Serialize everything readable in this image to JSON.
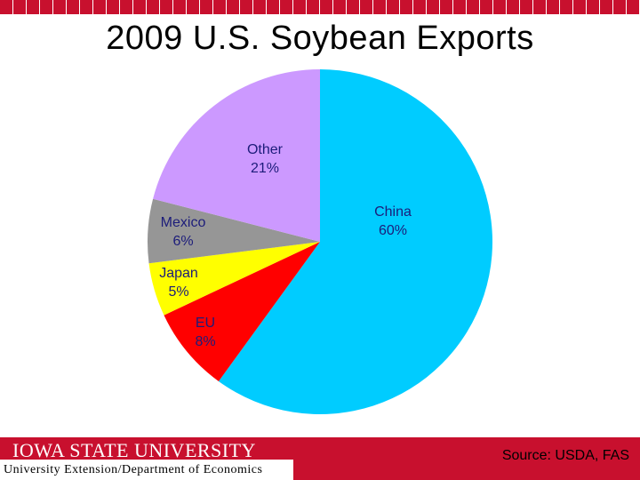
{
  "slide": {
    "title": "2009 U.S. Soybean Exports",
    "footer": {
      "logo_text": "IOWA STATE UNIVERSITY",
      "department": "University Extension/Department of Economics",
      "source": "Source: USDA, FAS"
    },
    "colors": {
      "brand_red": "#c8102e"
    }
  },
  "chart_data": {
    "type": "pie",
    "title": "2009 U.S. Soybean Exports",
    "slices": [
      {
        "label": "China",
        "value": 60,
        "value_label": "60%",
        "color": "#00ccff"
      },
      {
        "label": "EU",
        "value": 8,
        "value_label": "8%",
        "color": "#ff0000"
      },
      {
        "label": "Japan",
        "value": 5,
        "value_label": "5%",
        "color": "#ffff00"
      },
      {
        "label": "Mexico",
        "value": 6,
        "value_label": "6%",
        "color": "#969696"
      },
      {
        "label": "Other",
        "value": 21,
        "value_label": "21%",
        "color": "#cc99ff"
      }
    ],
    "start": "12 o'clock",
    "direction": "clockwise",
    "legend": "none"
  }
}
